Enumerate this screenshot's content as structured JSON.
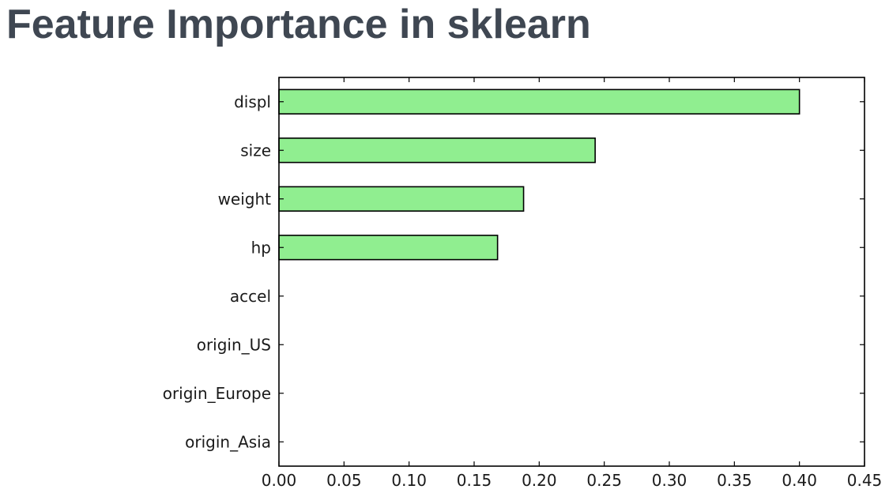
{
  "slide": {
    "title": "Feature Importance in sklearn"
  },
  "chart_data": {
    "type": "bar",
    "orientation": "horizontal",
    "title": "",
    "xlabel": "",
    "ylabel": "",
    "categories": [
      "displ",
      "size",
      "weight",
      "hp",
      "accel",
      "origin_US",
      "origin_Europe",
      "origin_Asia"
    ],
    "values": [
      0.4,
      0.243,
      0.188,
      0.168,
      0.0,
      0.0,
      0.0,
      0.0
    ],
    "xlim": [
      0.0,
      0.45
    ],
    "xticks": [
      "0.00",
      "0.05",
      "0.10",
      "0.15",
      "0.20",
      "0.25",
      "0.30",
      "0.35",
      "0.40",
      "0.45"
    ],
    "grid": false,
    "bar_color": "#90ee90",
    "edge_color": "#000000"
  }
}
